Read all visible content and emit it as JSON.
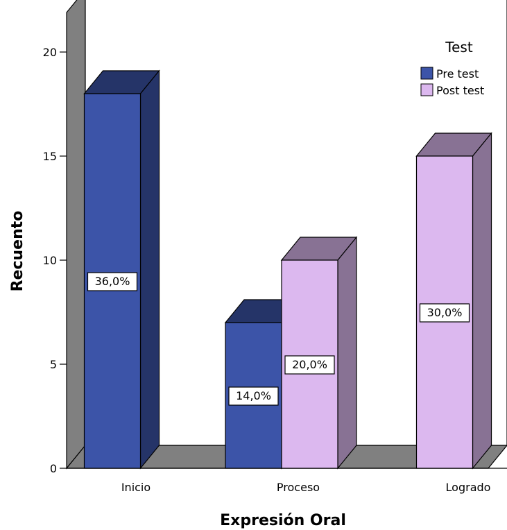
{
  "chart_data": {
    "type": "bar",
    "categories": [
      "Inicio",
      "Proceso",
      "Logrado"
    ],
    "series": [
      {
        "name": "Pre test",
        "values": [
          18,
          7,
          0
        ],
        "labels": [
          "36,0%",
          "14,0%",
          ""
        ],
        "color": "#3c54a8"
      },
      {
        "name": "Post test",
        "values": [
          0,
          10,
          15
        ],
        "labels": [
          "",
          "20,0%",
          "30,0%"
        ],
        "color": "#dcb8ef"
      }
    ],
    "xlabel": "Expresión Oral",
    "ylabel": "Recuento",
    "ylim": [
      0,
      20
    ],
    "yticks": [
      0,
      5,
      10,
      15,
      20
    ],
    "legend_title": "Test",
    "legend_position": "top-right",
    "grid": false,
    "style": "3d"
  }
}
